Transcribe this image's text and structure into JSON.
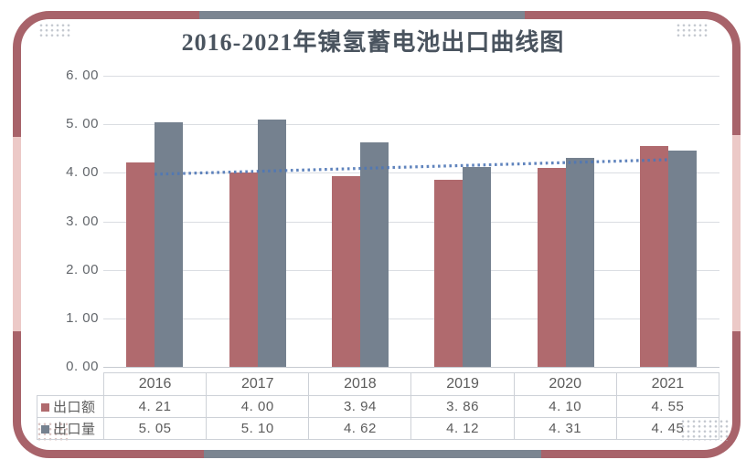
{
  "chart_data": {
    "type": "bar",
    "title": "2016-2021年镍氢蓄电池出口曲线图",
    "categories": [
      "2016",
      "2017",
      "2018",
      "2019",
      "2020",
      "2021"
    ],
    "series": [
      {
        "name": "出口额",
        "color": "#b06a6e",
        "values": [
          4.21,
          4.0,
          3.94,
          3.86,
          4.1,
          4.55
        ],
        "display": [
          "4. 21",
          "4. 00",
          "3. 94",
          "3. 86",
          "4. 10",
          "4. 55"
        ]
      },
      {
        "name": "出口量",
        "color": "#75818f",
        "values": [
          5.05,
          5.1,
          4.62,
          4.12,
          4.31,
          4.45
        ],
        "display": [
          "5. 05",
          "5. 10",
          "4. 62",
          "4. 12",
          "4. 31",
          "4. 45"
        ]
      }
    ],
    "ylim": [
      0,
      6
    ],
    "yticks": [
      0,
      1,
      2,
      3,
      4,
      5,
      6
    ],
    "yticks_display": [
      "0. 00",
      "1. 00",
      "2. 00",
      "3. 00",
      "4. 00",
      "5. 00",
      "6. 00"
    ],
    "grid": true,
    "legend_position": "table-row-headers",
    "value_table": true,
    "trendline": {
      "style": "dotted",
      "color": "#4f77b6",
      "series": "出口额",
      "start_value": 3.97,
      "end_value": 4.27
    }
  },
  "colors": {
    "bar_red": "#b06a6e",
    "bar_blue_gray": "#75818f",
    "frame_maroon": "#a8636a",
    "frame_gray": "#7b8591",
    "frame_pink": "#ecc9c7",
    "trend_blue": "#4f77b6",
    "title_text": "#4a545f",
    "axis_text": "#63676c",
    "grid_line": "#dadde2",
    "table_border": "#cdd1d7"
  }
}
